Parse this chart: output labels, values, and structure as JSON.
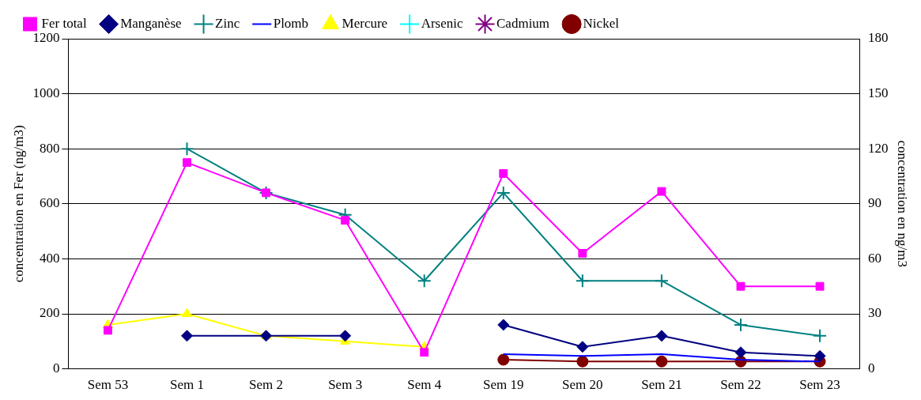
{
  "chart_data": {
    "type": "line",
    "ylabel": "concentration en Fer (ng/m3)",
    "y2label": "concentration en ng/m3",
    "categories": [
      "Sem 53",
      "Sem 1",
      "Sem 2",
      "Sem 3",
      "Sem 4",
      "Sem 19",
      "Sem 20",
      "Sem 21",
      "Sem 22",
      "Sem 23"
    ],
    "series": [
      {
        "name": "Fer total",
        "color": "#ff00ff",
        "marker": "square",
        "values": [
          140,
          750,
          640,
          540,
          60,
          710,
          420,
          645,
          300,
          300
        ]
      },
      {
        "name": "Manganèse",
        "color": "#000080",
        "marker": "diamond",
        "axis": "y2",
        "values": [
          null,
          18,
          18,
          18,
          null,
          24,
          12,
          18,
          9,
          7
        ]
      },
      {
        "name": "Zinc",
        "color": "#008080",
        "marker": "cross",
        "axis": "y2",
        "values": [
          null,
          120,
          96,
          84,
          48,
          96,
          48,
          48,
          24,
          18
        ]
      },
      {
        "name": "Plomb",
        "color": "#0000ff",
        "marker": "none",
        "axis": "y2",
        "values": [
          null,
          null,
          null,
          null,
          null,
          8,
          7,
          8,
          5,
          4
        ]
      },
      {
        "name": "Mercure",
        "color": "#ffff00",
        "marker": "triangle",
        "axis": "y2",
        "values": [
          24,
          30,
          18,
          15,
          12,
          null,
          null,
          null,
          null,
          null
        ]
      },
      {
        "name": "Arsenic",
        "color": "#00ffff",
        "marker": "cross",
        "axis": "y2",
        "values": [
          null,
          null,
          null,
          null,
          null,
          null,
          null,
          null,
          null,
          null
        ]
      },
      {
        "name": "Cadmium",
        "color": "#800080",
        "marker": "star",
        "axis": "y2",
        "values": [
          null,
          null,
          null,
          null,
          null,
          null,
          null,
          null,
          null,
          null
        ]
      },
      {
        "name": "Nickel",
        "color": "#800000",
        "marker": "circle",
        "axis": "y2",
        "values": [
          null,
          null,
          null,
          null,
          null,
          5,
          4,
          4,
          4,
          4
        ]
      }
    ],
    "ylim": [
      0,
      1200
    ],
    "yticks": [
      0,
      200,
      400,
      600,
      800,
      1000,
      1200
    ],
    "y2lim": [
      0,
      180
    ],
    "y2ticks": [
      0,
      30,
      60,
      90,
      120,
      150,
      180
    ],
    "grid": "y",
    "legend": "top",
    "line_style": "solid"
  }
}
